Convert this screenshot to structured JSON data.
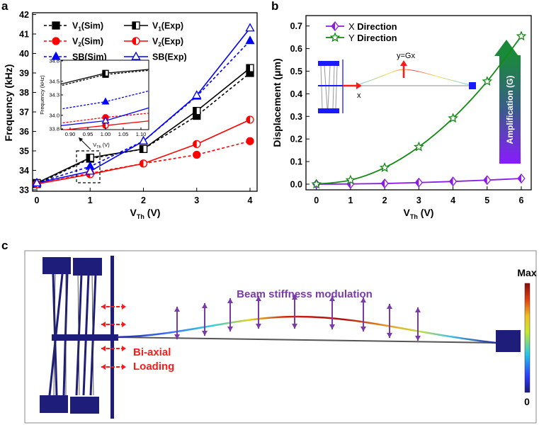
{
  "panels": {
    "a": "a",
    "b": "b",
    "c": "c"
  },
  "chart_data": [
    {
      "type": "line",
      "panel": "a",
      "xlabel_main": "V",
      "xlabel_sub": "Th",
      "xlabel_unit": " (V)",
      "ylabel": "Frequency (kHz)",
      "x": [
        0,
        1,
        2,
        3,
        4
      ],
      "xlim": [
        0,
        4
      ],
      "ylim": [
        33,
        42
      ],
      "xticks": [
        0,
        1,
        2,
        3,
        4
      ],
      "yticks": [
        33,
        34,
        35,
        36,
        37,
        38,
        39,
        40,
        41,
        42
      ],
      "legend_position": "top-left",
      "series": [
        {
          "name_main": "V",
          "name_sub": "1",
          "name_rest": "(Sim)",
          "color": "#000000",
          "dash": true,
          "marker": "square",
          "fill": "full",
          "values": [
            33.3,
            34.6,
            35.1,
            36.8,
            39.0
          ]
        },
        {
          "name_main": "V",
          "name_sub": "1",
          "name_rest": "(Exp)",
          "color": "#000000",
          "dash": false,
          "marker": "square",
          "fill": "half",
          "values": [
            33.35,
            34.65,
            35.1,
            37.05,
            39.25
          ]
        },
        {
          "name_main": "V",
          "name_sub": "2",
          "name_rest": "(Sim)",
          "color": "#ff0000",
          "dash": true,
          "marker": "circle",
          "fill": "full",
          "values": [
            33.3,
            33.85,
            34.35,
            34.8,
            35.5
          ]
        },
        {
          "name_main": "V",
          "name_sub": "2",
          "name_rest": "(Exp)",
          "color": "#ff0000",
          "dash": false,
          "marker": "circle",
          "fill": "half",
          "values": [
            33.3,
            33.8,
            34.35,
            35.35,
            36.6
          ]
        },
        {
          "name_main": "SB",
          "name_sub": "",
          "name_rest": "(Sim)",
          "color": "#0000ff",
          "dash": true,
          "marker": "triangle",
          "fill": "full",
          "values": [
            33.35,
            34.2,
            35.5,
            37.8,
            40.65
          ]
        },
        {
          "name_main": "SB",
          "name_sub": "",
          "name_rest": "(Exp)",
          "color": "#0000ff",
          "dash": false,
          "marker": "triangle",
          "fill": "open",
          "values": [
            33.35,
            33.95,
            35.5,
            37.85,
            41.3
          ]
        }
      ],
      "inset": {
        "xlim": [
          0.874,
          1.122
        ],
        "ylim": [
          33.8,
          34.8
        ],
        "xticks": [
          "0.90",
          "0.95",
          "1.00",
          "1.05",
          "1.10"
        ],
        "yticks": [
          "33.8",
          "34.0",
          "34.3",
          "34.5",
          "34.8"
        ],
        "ylabel": "Frequency (kHz)",
        "xlabel_main": "V",
        "xlabel_sub": "Th",
        "xlabel_unit": " (V)",
        "values_at_1": [
          34.6,
          34.62,
          33.97,
          33.85,
          34.2,
          33.92
        ]
      }
    },
    {
      "type": "line",
      "panel": "b",
      "xlabel_main": "V",
      "xlabel_sub": "Th",
      "xlabel_unit": " (V)",
      "ylabel": "Displacement (μm)",
      "x": [
        0,
        1,
        2,
        3,
        4,
        5,
        6
      ],
      "xlim": [
        0,
        6
      ],
      "ylim": [
        0,
        0.7
      ],
      "xticks": [
        0,
        1,
        2,
        3,
        4,
        5,
        6
      ],
      "yticks": [
        "0.0",
        "0.1",
        "0.2",
        "0.3",
        "0.4",
        "0.5",
        "0.6",
        "0.7"
      ],
      "legend_position": "top-left",
      "series": [
        {
          "name_main": "X",
          "name_rest": " Direction",
          "color": "#8a1be2",
          "marker": "diamond",
          "values": [
            0.0,
            0.001,
            0.003,
            0.007,
            0.012,
            0.018,
            0.025
          ]
        },
        {
          "name_main": "Y",
          "name_rest": " Direction",
          "color": "#138a13",
          "marker": "star",
          "values": [
            0.0,
            0.018,
            0.073,
            0.165,
            0.292,
            0.455,
            0.655
          ]
        }
      ],
      "annotations": {
        "y_eq": "y=Gx",
        "x_label": "x",
        "amplification": "Amplification (G)"
      }
    }
  ],
  "panel_c": {
    "title": "Beam stiffness modulation",
    "loading_line1": "Bi-axial",
    "loading_line2": "Loading",
    "colorbar_max": "Max",
    "colorbar_min": "0"
  }
}
